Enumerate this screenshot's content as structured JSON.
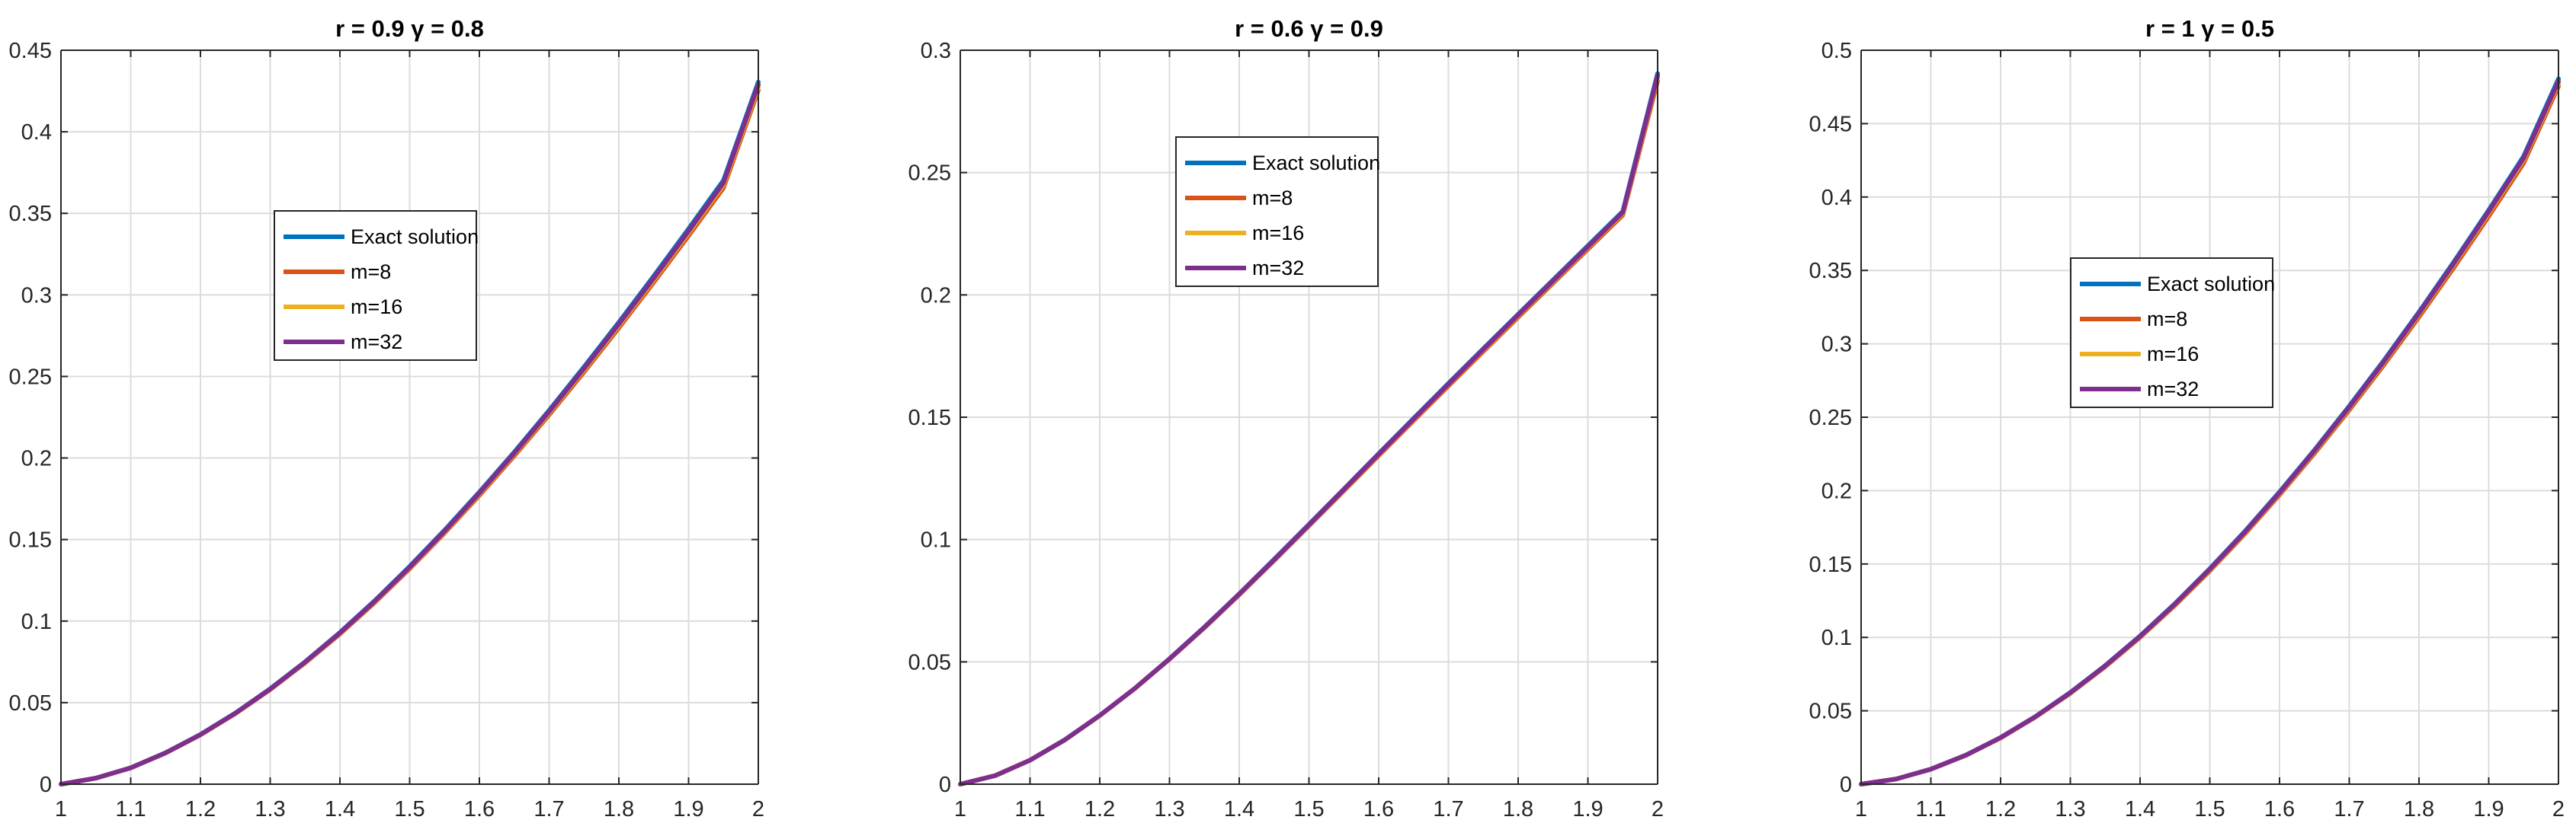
{
  "chart_data": [
    {
      "type": "line",
      "title": "r = 0.9 γ = 0.8",
      "xlabel": "",
      "ylabel": "",
      "xlim": [
        1,
        2
      ],
      "ylim": [
        0,
        0.45
      ],
      "xticks": [
        1,
        1.1,
        1.2,
        1.3,
        1.4,
        1.5,
        1.6,
        1.7,
        1.8,
        1.9,
        2
      ],
      "xtick_labels": [
        "1",
        "1.1",
        "1.2",
        "1.3",
        "1.4",
        "1.5",
        "1.6",
        "1.7",
        "1.8",
        "1.9",
        "2"
      ],
      "yticks": [
        0,
        0.05,
        0.1,
        0.15,
        0.2,
        0.25,
        0.3,
        0.35,
        0.4,
        0.45
      ],
      "ytick_labels": [
        "0",
        "0.05",
        "0.1",
        "0.15",
        "0.2",
        "0.25",
        "0.3",
        "0.35",
        "0.4",
        "0.45"
      ],
      "grid": true,
      "legend_position": "upper-center",
      "x": [
        1.0,
        1.05,
        1.1,
        1.15,
        1.2,
        1.25,
        1.3,
        1.35,
        1.4,
        1.45,
        1.5,
        1.55,
        1.6,
        1.65,
        1.7,
        1.75,
        1.8,
        1.85,
        1.9,
        1.95,
        2.0
      ],
      "series": [
        {
          "name": "Exact solution",
          "color": "#0072BD",
          "values": [
            0,
            0.0037,
            0.0101,
            0.0193,
            0.0305,
            0.0436,
            0.0585,
            0.075,
            0.093,
            0.1125,
            0.1335,
            0.1557,
            0.1791,
            0.2036,
            0.2292,
            0.2558,
            0.2832,
            0.3115,
            0.3405,
            0.3702,
            0.4305
          ]
        },
        {
          "name": "m=8",
          "color": "#D95319",
          "values": [
            0,
            0.0037,
            0.01,
            0.0191,
            0.0302,
            0.0432,
            0.058,
            0.0743,
            0.0921,
            0.1114,
            0.1321,
            0.154,
            0.1771,
            0.2013,
            0.2265,
            0.2527,
            0.2798,
            0.3077,
            0.3363,
            0.3656,
            0.4255
          ]
        },
        {
          "name": "m=16",
          "color": "#EDB120",
          "values": [
            0,
            0.0037,
            0.01,
            0.0192,
            0.0303,
            0.0434,
            0.0582,
            0.0746,
            0.0925,
            0.1119,
            0.1327,
            0.1547,
            0.178,
            0.2023,
            0.2277,
            0.254,
            0.2812,
            0.3092,
            0.338,
            0.3675,
            0.4275
          ]
        },
        {
          "name": "m=32",
          "color": "#7E2F8E",
          "values": [
            0,
            0.0037,
            0.01,
            0.0192,
            0.0304,
            0.0435,
            0.0583,
            0.0748,
            0.0927,
            0.1122,
            0.133,
            0.1551,
            0.1785,
            0.2029,
            0.2284,
            0.2548,
            0.2821,
            0.3102,
            0.3391,
            0.3687,
            0.429
          ]
        }
      ]
    },
    {
      "type": "line",
      "title": "r = 0.6 γ = 0.9",
      "xlabel": "",
      "ylabel": "",
      "xlim": [
        1,
        2
      ],
      "ylim": [
        0,
        0.3
      ],
      "xticks": [
        1,
        1.1,
        1.2,
        1.3,
        1.4,
        1.5,
        1.6,
        1.7,
        1.8,
        1.9,
        2
      ],
      "xtick_labels": [
        "1",
        "1.1",
        "1.2",
        "1.3",
        "1.4",
        "1.5",
        "1.6",
        "1.7",
        "1.8",
        "1.9",
        "2"
      ],
      "yticks": [
        0,
        0.05,
        0.1,
        0.15,
        0.2,
        0.25,
        0.3
      ],
      "ytick_labels": [
        "0",
        "0.05",
        "0.1",
        "0.15",
        "0.2",
        "0.25",
        "0.3"
      ],
      "grid": true,
      "legend_position": "upper-center",
      "x": [
        1.0,
        1.05,
        1.1,
        1.15,
        1.2,
        1.25,
        1.3,
        1.35,
        1.4,
        1.45,
        1.5,
        1.55,
        1.6,
        1.65,
        1.7,
        1.75,
        1.8,
        1.85,
        1.9,
        1.95,
        2.0
      ],
      "series": [
        {
          "name": "Exact solution",
          "color": "#0072BD",
          "values": [
            0,
            0.0035,
            0.0098,
            0.0182,
            0.0281,
            0.0391,
            0.0513,
            0.0642,
            0.0778,
            0.0919,
            0.1062,
            0.1206,
            0.1351,
            0.1495,
            0.1638,
            0.178,
            0.1921,
            0.2061,
            0.2201,
            0.2341,
            0.2905
          ]
        },
        {
          "name": "m=8",
          "color": "#D95319",
          "values": [
            0,
            0.0035,
            0.0098,
            0.0181,
            0.028,
            0.039,
            0.0511,
            0.0639,
            0.0774,
            0.0914,
            0.1056,
            0.1199,
            0.1343,
            0.1486,
            0.1628,
            0.1769,
            0.1909,
            0.2048,
            0.2187,
            0.2326,
            0.2875
          ]
        },
        {
          "name": "m=16",
          "color": "#EDB120",
          "values": [
            0,
            0.0035,
            0.0098,
            0.0181,
            0.028,
            0.0391,
            0.0512,
            0.064,
            0.0776,
            0.0916,
            0.1059,
            0.1202,
            0.1347,
            0.149,
            0.1633,
            0.1774,
            0.1915,
            0.2054,
            0.2194,
            0.2333,
            0.289
          ]
        },
        {
          "name": "m=32",
          "color": "#7E2F8E",
          "values": [
            0,
            0.0035,
            0.0098,
            0.0181,
            0.0281,
            0.0391,
            0.0512,
            0.0641,
            0.0777,
            0.0917,
            0.106,
            0.1204,
            0.1349,
            0.1492,
            0.1635,
            0.1777,
            0.1918,
            0.2057,
            0.2197,
            0.2337,
            0.2897
          ]
        }
      ]
    },
    {
      "type": "line",
      "title": "r = 1 γ = 0.5",
      "xlabel": "",
      "ylabel": "",
      "xlim": [
        1,
        2
      ],
      "ylim": [
        0,
        0.5
      ],
      "xticks": [
        1,
        1.1,
        1.2,
        1.3,
        1.4,
        1.5,
        1.6,
        1.7,
        1.8,
        1.9,
        2
      ],
      "xtick_labels": [
        "1",
        "1.1",
        "1.2",
        "1.3",
        "1.4",
        "1.5",
        "1.6",
        "1.7",
        "1.8",
        "1.9",
        "2"
      ],
      "yticks": [
        0,
        0.05,
        0.1,
        0.15,
        0.2,
        0.25,
        0.3,
        0.35,
        0.4,
        0.45,
        0.5
      ],
      "ytick_labels": [
        "0",
        "0.05",
        "0.1",
        "0.15",
        "0.2",
        "0.25",
        "0.3",
        "0.35",
        "0.4",
        "0.45",
        "0.5"
      ],
      "grid": true,
      "legend_position": "center",
      "x": [
        1.0,
        1.05,
        1.1,
        1.15,
        1.2,
        1.25,
        1.3,
        1.35,
        1.4,
        1.45,
        1.5,
        1.55,
        1.6,
        1.65,
        1.7,
        1.75,
        1.8,
        1.85,
        1.9,
        1.95,
        2.0
      ],
      "series": [
        {
          "name": "Exact solution",
          "color": "#0072BD",
          "values": [
            0,
            0.0035,
            0.0103,
            0.0198,
            0.0318,
            0.0461,
            0.0625,
            0.0808,
            0.101,
            0.123,
            0.1468,
            0.1721,
            0.1991,
            0.2276,
            0.2576,
            0.2889,
            0.3217,
            0.3558,
            0.3911,
            0.4277,
            0.4805
          ]
        },
        {
          "name": "m=8",
          "color": "#D95319",
          "values": [
            0,
            0.0035,
            0.0102,
            0.0196,
            0.0315,
            0.0457,
            0.0619,
            0.08,
            0.1,
            0.1218,
            0.1453,
            0.1704,
            0.1971,
            0.2253,
            0.2549,
            0.2859,
            0.3183,
            0.352,
            0.3869,
            0.4231,
            0.4755
          ]
        },
        {
          "name": "m=16",
          "color": "#EDB120",
          "values": [
            0,
            0.0035,
            0.0102,
            0.0197,
            0.0316,
            0.0459,
            0.0622,
            0.0804,
            0.1005,
            0.1224,
            0.146,
            0.1712,
            0.198,
            0.2264,
            0.2562,
            0.2874,
            0.32,
            0.3539,
            0.389,
            0.4254,
            0.4775
          ]
        },
        {
          "name": "m=32",
          "color": "#7E2F8E",
          "values": [
            0,
            0.0035,
            0.0102,
            0.0197,
            0.0317,
            0.046,
            0.0623,
            0.0806,
            0.1007,
            0.1227,
            0.1464,
            0.1716,
            0.1985,
            0.227,
            0.2569,
            0.2881,
            0.3208,
            0.3548,
            0.3901,
            0.4265,
            0.4788
          ]
        }
      ]
    }
  ]
}
